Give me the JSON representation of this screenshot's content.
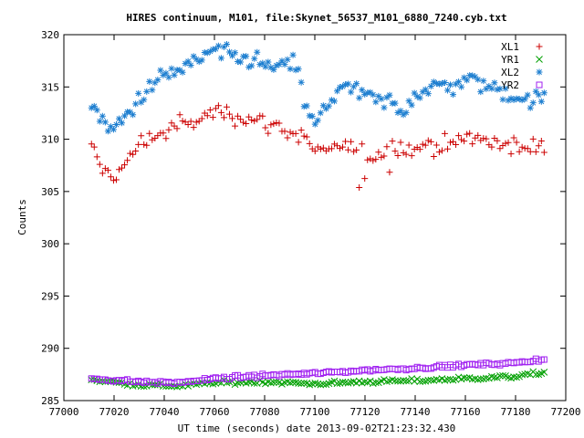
{
  "chart_data": {
    "type": "scatter",
    "title": "HIRES continuum, M101, file:Skynet_56537_M101_6880_7240.cyb.txt",
    "xlabel": "UT time (seconds) date 2013-09-02T21:23:32.430",
    "ylabel": "Counts",
    "xlim": [
      77000,
      77200
    ],
    "ylim": [
      285,
      320
    ],
    "xticks": [
      77000,
      77020,
      77040,
      77060,
      77080,
      77100,
      77120,
      77140,
      77160,
      77180,
      77200
    ],
    "yticks": [
      285,
      290,
      295,
      300,
      305,
      310,
      315,
      320
    ],
    "grid": false,
    "legend_position": "top-right",
    "x_start": 77011,
    "x_step": 1.1,
    "series": [
      {
        "name": "XL1",
        "marker": "plus",
        "color": "#cc0000",
        "anchors": [
          [
            77011,
            309.0
          ],
          [
            77015,
            307.2
          ],
          [
            77020,
            306.5
          ],
          [
            77025,
            307.6
          ],
          [
            77030,
            309.6
          ],
          [
            77035,
            310.3
          ],
          [
            77040,
            310.5
          ],
          [
            77045,
            311.5
          ],
          [
            77050,
            311.3
          ],
          [
            77055,
            312.0
          ],
          [
            77060,
            312.7
          ],
          [
            77065,
            312.5
          ],
          [
            77070,
            312.2
          ],
          [
            77075,
            312.0
          ],
          [
            77080,
            311.5
          ],
          [
            77085,
            311.3
          ],
          [
            77090,
            310.7
          ],
          [
            77095,
            310.2
          ],
          [
            77100,
            309.0
          ],
          [
            77105,
            308.6
          ],
          [
            77110,
            309.3
          ],
          [
            77115,
            309.1
          ],
          [
            77120,
            308.5
          ],
          [
            77125,
            308.4
          ],
          [
            77130,
            309.5
          ],
          [
            77135,
            309.2
          ],
          [
            77140,
            308.9
          ],
          [
            77145,
            309.7
          ],
          [
            77150,
            309.3
          ],
          [
            77155,
            309.6
          ],
          [
            77160,
            310.4
          ],
          [
            77165,
            310.0
          ],
          [
            77170,
            309.6
          ],
          [
            77175,
            309.8
          ],
          [
            77180,
            309.2
          ],
          [
            77185,
            308.9
          ],
          [
            77190,
            309.5
          ],
          [
            77192,
            309.6
          ]
        ],
        "noise": 0.7
      },
      {
        "name": "YR1",
        "marker": "cross",
        "color": "#00a000",
        "anchors": [
          [
            77011,
            287.0
          ],
          [
            77030,
            286.5
          ],
          [
            77045,
            286.4
          ],
          [
            77060,
            286.7
          ],
          [
            77080,
            286.8
          ],
          [
            77100,
            286.6
          ],
          [
            77120,
            286.8
          ],
          [
            77140,
            286.9
          ],
          [
            77160,
            287.1
          ],
          [
            77180,
            287.3
          ],
          [
            77192,
            287.7
          ]
        ],
        "noise": 0.15
      },
      {
        "name": "XL2",
        "marker": "asterisk",
        "color": "#1e7fd0",
        "anchors": [
          [
            77011,
            313.4
          ],
          [
            77014,
            312.3
          ],
          [
            77018,
            310.7
          ],
          [
            77022,
            311.4
          ],
          [
            77026,
            312.6
          ],
          [
            77030,
            313.9
          ],
          [
            77035,
            315.0
          ],
          [
            77040,
            316.1
          ],
          [
            77045,
            316.5
          ],
          [
            77050,
            317.0
          ],
          [
            77055,
            317.8
          ],
          [
            77060,
            318.5
          ],
          [
            77065,
            318.0
          ],
          [
            77070,
            317.6
          ],
          [
            77075,
            317.7
          ],
          [
            77080,
            317.0
          ],
          [
            77085,
            316.8
          ],
          [
            77090,
            317.0
          ],
          [
            77093,
            317.5
          ],
          [
            77096,
            313.0
          ],
          [
            77100,
            311.3
          ],
          [
            77105,
            313.3
          ],
          [
            77110,
            315.0
          ],
          [
            77115,
            314.6
          ],
          [
            77120,
            314.3
          ],
          [
            77125,
            313.5
          ],
          [
            77130,
            313.6
          ],
          [
            77135,
            312.6
          ],
          [
            77140,
            314.5
          ],
          [
            77145,
            314.6
          ],
          [
            77150,
            315.2
          ],
          [
            77155,
            315.1
          ],
          [
            77160,
            315.7
          ],
          [
            77165,
            315.5
          ],
          [
            77170,
            314.9
          ],
          [
            77175,
            314.6
          ],
          [
            77180,
            314.2
          ],
          [
            77185,
            313.6
          ],
          [
            77192,
            314.0
          ]
        ],
        "noise": 0.75
      },
      {
        "name": "YR2",
        "marker": "square",
        "color": "#a020f0",
        "anchors": [
          [
            77011,
            287.1
          ],
          [
            77030,
            286.8
          ],
          [
            77045,
            286.7
          ],
          [
            77060,
            287.1
          ],
          [
            77080,
            287.4
          ],
          [
            77100,
            287.6
          ],
          [
            77120,
            287.9
          ],
          [
            77140,
            288.1
          ],
          [
            77160,
            288.4
          ],
          [
            77180,
            288.6
          ],
          [
            77192,
            289.0
          ]
        ],
        "noise": 0.12
      }
    ]
  }
}
